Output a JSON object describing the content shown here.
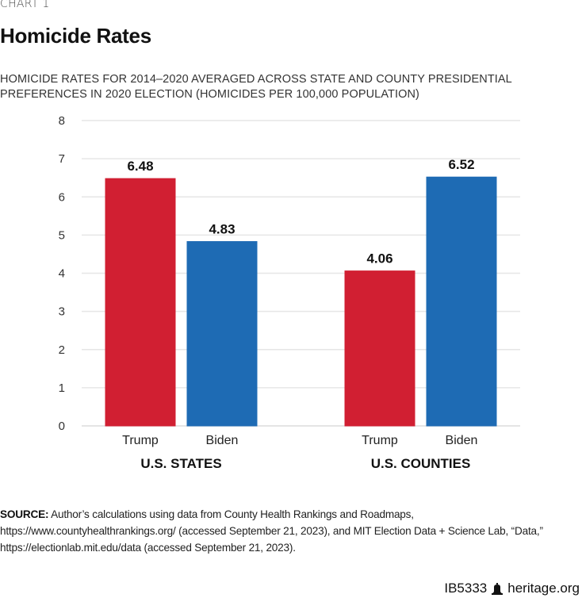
{
  "header": {
    "chart_number": "CHART 1",
    "title": "Homicide Rates",
    "subtitle": "HOMICIDE RATES FOR 2014–2020 AVERAGED ACROSS STATE AND COUNTY PRESIDENTIAL PREFERENCES IN 2020 ELECTION (HOMICIDES PER 100,000 POPULATION)"
  },
  "colors": {
    "trump": "#d11f32",
    "biden": "#1e6bb4",
    "grid": "#e6e6e6"
  },
  "chart_data": {
    "type": "bar",
    "title": "Homicide Rates",
    "subtitle": "HOMICIDE RATES FOR 2014–2020 AVERAGED ACROSS STATE AND COUNTY PRESIDENTIAL PREFERENCES IN 2020 ELECTION (HOMICIDES PER 100,000 POPULATION)",
    "xlabel": "",
    "ylabel": "",
    "ylim": [
      0,
      8
    ],
    "yticks": [
      "0",
      "1",
      "2",
      "3",
      "4",
      "5",
      "6",
      "7",
      "8"
    ],
    "grid": true,
    "groups": [
      {
        "name": "U.S. STATES",
        "bars": [
          {
            "category": "Trump",
            "value": 6.48,
            "label": "6.48",
            "color": "#d11f32"
          },
          {
            "category": "Biden",
            "value": 4.83,
            "label": "4.83",
            "color": "#1e6bb4"
          }
        ]
      },
      {
        "name": "U.S. COUNTIES",
        "bars": [
          {
            "category": "Trump",
            "value": 4.06,
            "label": "4.06",
            "color": "#d11f32"
          },
          {
            "category": "Biden",
            "value": 6.52,
            "label": "6.52",
            "color": "#1e6bb4"
          }
        ]
      }
    ]
  },
  "source": {
    "label": "SOURCE:",
    "text": " Author’s calculations using data from County Health Rankings and Roadmaps, https://www.countyhealthrankings.org/ (accessed September 21, 2023), and MIT Election Data + Science Lab, “Data,” https://electionlab.mit.edu/data (accessed September 21, 2023)."
  },
  "footer": {
    "code": "IB5333",
    "icon": "liberty-bell-icon",
    "site": "heritage.org"
  }
}
